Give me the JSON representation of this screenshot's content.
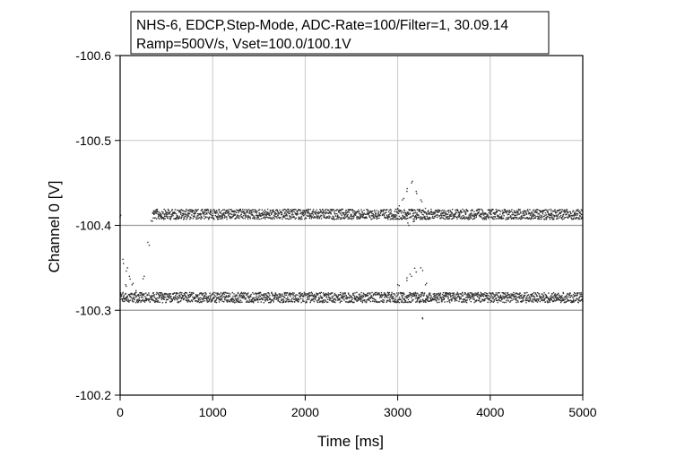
{
  "chart_data": {
    "type": "scatter",
    "title_lines": [
      "NHS-6, EDCP,Step-Mode, ADC-Rate=100/Filter=1, 30.09.14",
      "Ramp=500V/s, Vset=100.0/100.1V"
    ],
    "xlabel": "Time [ms]",
    "ylabel": "Channel 0 [V]",
    "xlim": [
      0,
      5000
    ],
    "ylim": [
      -100.2,
      -100.6
    ],
    "x_ticks": [
      0,
      1000,
      2000,
      3000,
      4000,
      5000
    ],
    "x_tick_labels": [
      "0",
      "1000",
      "2000",
      "3000",
      "4000",
      "5000"
    ],
    "y_ticks": [
      -100.2,
      -100.3,
      -100.4,
      -100.5,
      -100.6
    ],
    "y_tick_labels": [
      "-100.2",
      "-100.3",
      "-100.4",
      "-100.5",
      "-100.6"
    ],
    "grid": true,
    "reference_lines_y": [
      -100.3,
      -100.4
    ],
    "series": [
      {
        "points": [
          [
            0,
            -100.41
          ],
          [
            30,
            -100.36
          ],
          [
            60,
            -100.33
          ],
          [
            80,
            -100.35
          ],
          [
            100,
            -100.34
          ],
          [
            130,
            -100.33
          ],
          [
            160,
            -100.32
          ],
          [
            200,
            -100.31
          ],
          [
            260,
            -100.34
          ],
          [
            300,
            -100.38
          ],
          [
            350,
            -100.405
          ]
        ],
        "note_level": -100.4
      },
      {
        "level": -100.413,
        "x_range": [
          350,
          5000
        ]
      },
      {
        "level": -100.315,
        "x_range": [
          0,
          5000
        ]
      },
      {
        "points": [
          [
            3000,
            -100.42
          ],
          [
            3050,
            -100.43
          ],
          [
            3100,
            -100.44
          ],
          [
            3150,
            -100.45
          ],
          [
            3200,
            -100.44
          ],
          [
            3250,
            -100.43
          ],
          [
            3300,
            -100.42
          ],
          [
            3120,
            -100.4
          ],
          [
            3180,
            -100.405
          ],
          [
            3000,
            -100.33
          ],
          [
            3050,
            -100.32
          ],
          [
            3100,
            -100.335
          ],
          [
            3150,
            -100.34
          ],
          [
            3200,
            -100.345
          ],
          [
            3250,
            -100.35
          ],
          [
            3300,
            -100.33
          ],
          [
            3350,
            -100.32
          ],
          [
            3230,
            -100.31
          ],
          [
            3270,
            -100.29
          ]
        ]
      }
    ]
  }
}
